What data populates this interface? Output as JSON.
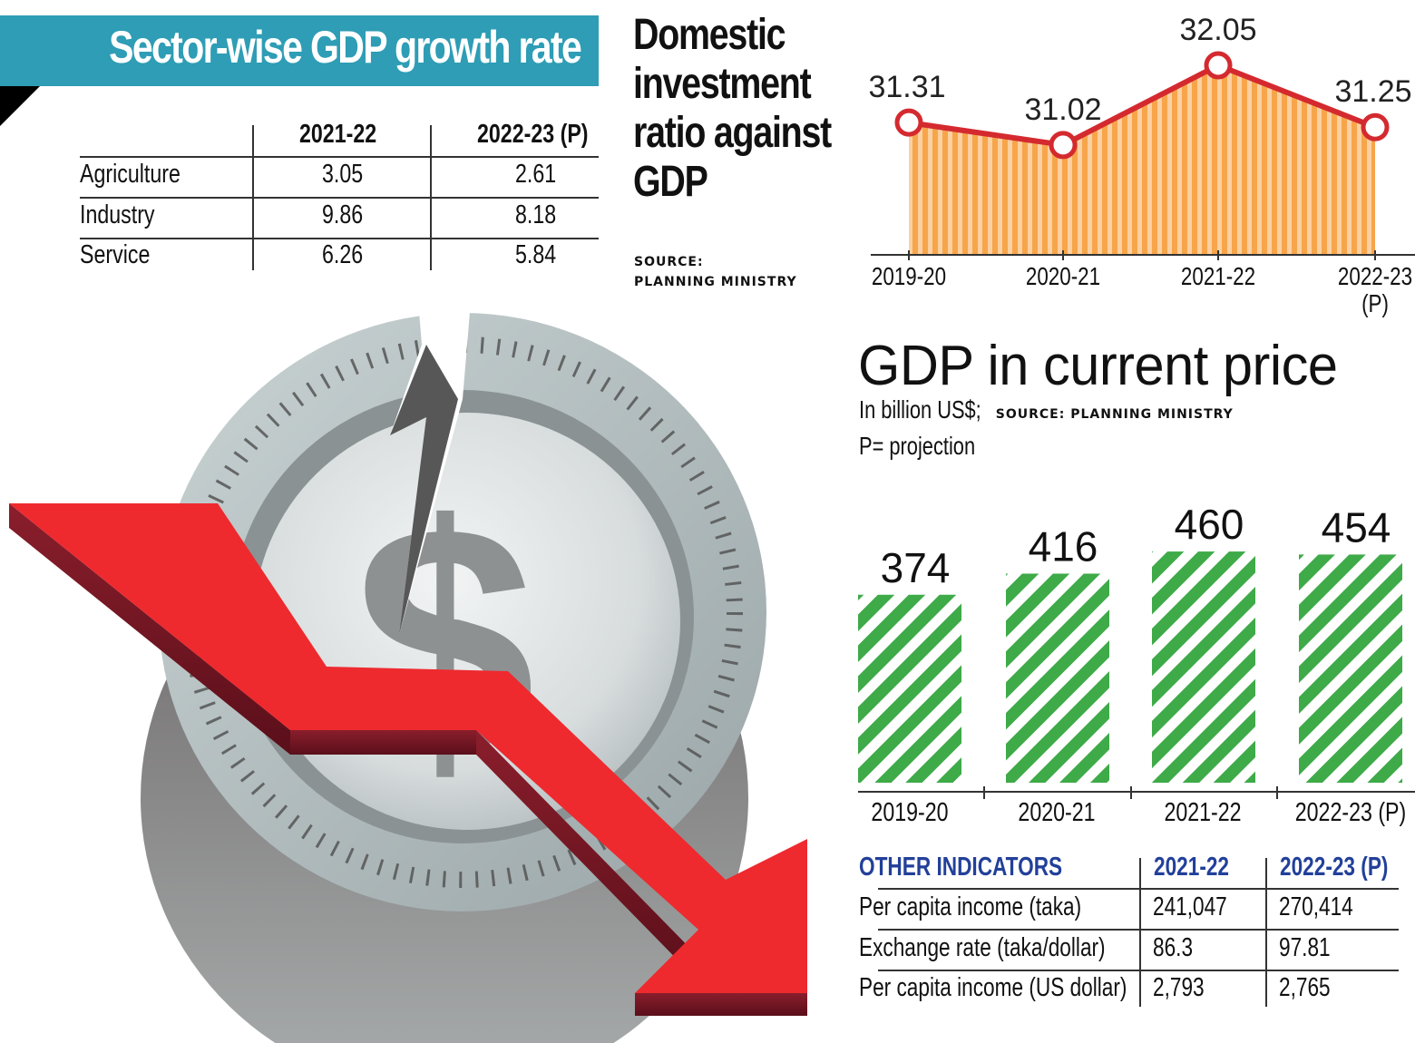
{
  "sector_table": {
    "title": "Sector-wise GDP growth rate",
    "columns": [
      "",
      "2021-22",
      "2022-23 (P)"
    ],
    "rows": [
      {
        "label": "Agriculture",
        "v1": "3.05",
        "v2": "2.61"
      },
      {
        "label": "Industry",
        "v1": "9.86",
        "v2": "8.18"
      },
      {
        "label": "Service",
        "v1": "6.26",
        "v2": "5.84"
      }
    ],
    "banner_color": "#2e9db5"
  },
  "investment": {
    "title_lines": [
      "Domestic",
      "investment",
      "ratio against",
      "GDP"
    ],
    "source_lines": [
      "SOURCE:",
      "PLANNING MINISTRY"
    ]
  },
  "gdp": {
    "title": "GDP in current price",
    "unit": "In billion US$;",
    "source": "SOURCE: PLANNING MINISTRY",
    "note": "P= projection"
  },
  "other_indicators": {
    "header": "OTHER INDICATORS",
    "columns": [
      "2021-22",
      "2022-23 (P)"
    ],
    "rows": [
      {
        "label": "Per capita income (taka)",
        "v1": "241,047",
        "v2": "270,414"
      },
      {
        "label": "Exchange rate (taka/dollar)",
        "v1": "86.3",
        "v2": "97.81"
      },
      {
        "label": "Per capita income (US dollar)",
        "v1": "2,793",
        "v2": "2,765"
      }
    ],
    "header_color": "#22409a"
  },
  "illustration": {
    "icons": [
      "cracked-dollar-coin-icon",
      "downward-red-arrow-icon"
    ]
  },
  "chart_data": [
    {
      "type": "area",
      "title": "Domestic investment ratio against GDP",
      "categories": [
        "2019-20",
        "2020-21",
        "2021-22",
        "2022-23 (P)"
      ],
      "category_labels": [
        [
          "2019-20"
        ],
        [
          "2020-21"
        ],
        [
          "2021-22"
        ],
        [
          "2022-23",
          "(P)"
        ]
      ],
      "values": [
        31.31,
        31.02,
        32.05,
        31.25
      ],
      "data_labels": [
        "31.31",
        "31.02",
        "32.05",
        "31.25"
      ],
      "xlabel": "",
      "ylabel": "",
      "ylim": [
        29.6,
        32.05
      ],
      "grid": false,
      "legend": "none",
      "colors": {
        "line": "#d42a2f",
        "fill_a": "#f7a54a",
        "fill_b": "#fcd0a0"
      },
      "source": "PLANNING MINISTRY"
    },
    {
      "type": "bar",
      "title": "GDP in current price",
      "subtitle": "In billion US$; SOURCE: PLANNING MINISTRY",
      "categories": [
        "2019-20",
        "2020-21",
        "2021-22",
        "2022-23 (P)"
      ],
      "values": [
        374,
        416,
        460,
        454
      ],
      "data_labels": [
        "374",
        "416",
        "460",
        "454"
      ],
      "xlabel": "",
      "ylabel": "Billion US$",
      "ylim": [
        0,
        470
      ],
      "grid": false,
      "legend": "none",
      "colors": {
        "stripe": "#3eaa48",
        "background": "#ffffff"
      },
      "note": "P= projection"
    }
  ]
}
